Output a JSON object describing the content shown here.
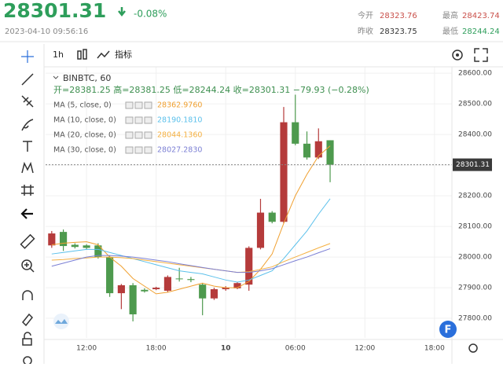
{
  "header": {
    "price": "28301.31",
    "change": "-0.08%",
    "timestamp": "2023-04-10 09:56:16",
    "stats": [
      {
        "label": "今开",
        "value": "28323.76"
      },
      {
        "label": "最高",
        "value": "28423.74"
      },
      {
        "label": "昨收",
        "value": "28323.75"
      },
      {
        "label": "最低",
        "value": "28244.24"
      }
    ]
  },
  "toolbar": {
    "interval": "1h",
    "indicators": "指标"
  },
  "chart_data": {
    "type": "candlestick",
    "title": "BINBTC, 60",
    "ohlc_text": "开=28381.25  高=28381.25  低=28244.24  收=28301.31  −79.93 (−0.28%)",
    "up_color": "#b53b3b",
    "down_color": "#4e9a4e",
    "x": [
      9,
      10,
      11,
      12,
      13,
      14,
      15,
      16,
      17,
      18,
      19,
      20,
      21,
      22,
      23,
      24,
      25,
      26,
      27,
      28,
      29,
      30,
      31,
      32,
      33
    ],
    "open": [
      28038,
      28082,
      28040,
      28038,
      28038,
      28000,
      27882,
      27908,
      27893,
      27895,
      27890,
      27930,
      27928,
      27910,
      27865,
      27895,
      27898,
      27910,
      28030,
      28145,
      28115,
      28440,
      28370,
      28325,
      28381.25
    ],
    "high": [
      28085,
      28090,
      28045,
      28042,
      28045,
      28005,
      27912,
      27915,
      27898,
      27903,
      27940,
      27965,
      27935,
      27915,
      27900,
      27905,
      27918,
      28035,
      28190,
      28150,
      28490,
      28530,
      28410,
      28420,
      28381.25
    ],
    "low": [
      28030,
      28020,
      28028,
      28026,
      27995,
      27870,
      27830,
      27790,
      27884,
      27892,
      27885,
      27920,
      27918,
      27810,
      27860,
      27890,
      27895,
      27890,
      28025,
      28110,
      28110,
      28365,
      28318,
      28320,
      28244.24
    ],
    "close": [
      28077,
      28036,
      28033,
      28030,
      28000,
      27882,
      27908,
      27813,
      27888,
      27900,
      27935,
      27928,
      27925,
      27865,
      27895,
      27900,
      27915,
      28030,
      28145,
      28115,
      28440,
      28370,
      28325,
      28378,
      28301.31
    ],
    "ma": [
      {
        "name": "MA (5, close, 0)",
        "color": "#f0a030",
        "value_label": "28362.9760",
        "values": [
          28040,
          28045,
          28048,
          28050,
          28040,
          28000,
          27970,
          27930,
          27905,
          27880,
          27885,
          27895,
          27905,
          27915,
          27905,
          27900,
          27900,
          27920,
          27960,
          28010,
          28110,
          28200,
          28270,
          28330,
          28362.976
        ]
      },
      {
        "name": "MA (10, close, 0)",
        "color": "#5bc0eb",
        "value_label": "28190.1810",
        "values": [
          28010,
          28015,
          28020,
          28025,
          28025,
          28015,
          28005,
          27995,
          27985,
          27975,
          27965,
          27955,
          27950,
          27945,
          27935,
          27925,
          27918,
          27925,
          27940,
          27955,
          27995,
          28040,
          28085,
          28140,
          28190.181
        ]
      },
      {
        "name": "MA (20, close, 0)",
        "color": "#f5b041",
        "value_label": "28044.1360",
        "values": [
          27990,
          27992,
          27995,
          27997,
          28000,
          28000,
          27998,
          27995,
          27990,
          27985,
          27980,
          27975,
          27970,
          27965,
          27960,
          27955,
          27950,
          27952,
          27960,
          27968,
          27985,
          28000,
          28015,
          28030,
          28044.136
        ]
      },
      {
        "name": "MA (30, close, 0)",
        "color": "#7b7fd4",
        "value_label": "28027.2830",
        "values": [
          27970,
          27980,
          27990,
          28000,
          28005,
          28005,
          28003,
          28000,
          27995,
          27990,
          27985,
          27978,
          27972,
          27966,
          27960,
          27955,
          27950,
          27950,
          27955,
          27962,
          27975,
          27988,
          28000,
          28014,
          28027.283
        ]
      }
    ],
    "last_price": {
      "value": 28301.31,
      "label": "28301.31"
    },
    "xlim": [
      8.47,
      43.5
    ],
    "ylim": [
      27736,
      28621
    ],
    "yticks": [
      {
        "value": 27800,
        "label": "27800.00"
      },
      {
        "value": 27900,
        "label": "27900.00"
      },
      {
        "value": 28000,
        "label": "28000.00"
      },
      {
        "value": 28100,
        "label": "28100.00"
      },
      {
        "value": 28200,
        "label": "28200.00"
      },
      {
        "value": 28300,
        "label": "28300.00"
      },
      {
        "value": 28400,
        "label": "28400.00"
      },
      {
        "value": 28500,
        "label": "28500.00"
      },
      {
        "value": 28600,
        "label": "28600.00"
      }
    ],
    "xticks": [
      {
        "value": 12,
        "label": "12:00"
      },
      {
        "value": 18,
        "label": "18:00"
      },
      {
        "value": 24,
        "label": "10"
      },
      {
        "value": 30,
        "label": "06:00"
      },
      {
        "value": 36,
        "label": "12:00"
      },
      {
        "value": 42,
        "label": "18:00"
      }
    ],
    "grid": true
  }
}
